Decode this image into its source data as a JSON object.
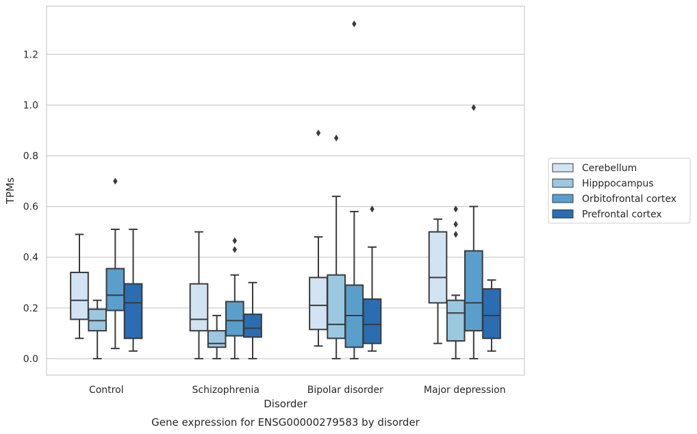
{
  "chart_data": {
    "type": "box",
    "title": "Gene expression for ENSG00000279583 by disorder",
    "xlabel": "Disorder",
    "ylabel": "TPMs",
    "ylim": [
      -0.065,
      1.39
    ],
    "yticks": [
      "0.0",
      "0.2",
      "0.4",
      "0.6",
      "0.8",
      "1.0",
      "1.2"
    ],
    "grid": true,
    "legend_position": "right",
    "categories": [
      "Control",
      "Schizophrenia",
      "Bipolar disorder",
      "Major depression"
    ],
    "series": [
      {
        "name": "Cerebellum",
        "color": "#d2e3f3",
        "boxes": [
          {
            "min": 0.08,
            "q1": 0.155,
            "median": 0.23,
            "q3": 0.34,
            "max": 0.49,
            "outliers": []
          },
          {
            "min": 0.0,
            "q1": 0.11,
            "median": 0.155,
            "q3": 0.295,
            "max": 0.5,
            "outliers": []
          },
          {
            "min": 0.05,
            "q1": 0.115,
            "median": 0.21,
            "q3": 0.32,
            "max": 0.48,
            "outliers": [
              0.89
            ]
          },
          {
            "min": 0.06,
            "q1": 0.22,
            "median": 0.32,
            "q3": 0.5,
            "max": 0.55,
            "outliers": []
          }
        ]
      },
      {
        "name": "Hipppocampus",
        "color": "#9ac8e0",
        "boxes": [
          {
            "min": 0.0,
            "q1": 0.11,
            "median": 0.15,
            "q3": 0.195,
            "max": 0.23,
            "outliers": []
          },
          {
            "min": 0.0,
            "q1": 0.045,
            "median": 0.06,
            "q3": 0.11,
            "max": 0.17,
            "outliers": []
          },
          {
            "min": 0.0,
            "q1": 0.08,
            "median": 0.135,
            "q3": 0.33,
            "max": 0.64,
            "outliers": [
              0.87
            ]
          },
          {
            "min": 0.0,
            "q1": 0.07,
            "median": 0.18,
            "q3": 0.23,
            "max": 0.25,
            "outliers": [
              0.49,
              0.53,
              0.59
            ]
          }
        ]
      },
      {
        "name": "Orbitofrontal cortex",
        "color": "#5a9ecc",
        "boxes": [
          {
            "min": 0.04,
            "q1": 0.19,
            "median": 0.25,
            "q3": 0.355,
            "max": 0.51,
            "outliers": [
              0.7
            ]
          },
          {
            "min": 0.0,
            "q1": 0.09,
            "median": 0.15,
            "q3": 0.225,
            "max": 0.33,
            "outliers": [
              0.43,
              0.465
            ]
          },
          {
            "min": 0.0,
            "q1": 0.045,
            "median": 0.17,
            "q3": 0.29,
            "max": 0.58,
            "outliers": [
              1.32
            ]
          },
          {
            "min": 0.0,
            "q1": 0.11,
            "median": 0.22,
            "q3": 0.425,
            "max": 0.6,
            "outliers": [
              0.99
            ]
          }
        ]
      },
      {
        "name": "Prefrontal cortex",
        "color": "#2a6db3",
        "boxes": [
          {
            "min": 0.03,
            "q1": 0.08,
            "median": 0.22,
            "q3": 0.295,
            "max": 0.51,
            "outliers": []
          },
          {
            "min": 0.0,
            "q1": 0.085,
            "median": 0.12,
            "q3": 0.175,
            "max": 0.3,
            "outliers": []
          },
          {
            "min": 0.03,
            "q1": 0.06,
            "median": 0.135,
            "q3": 0.235,
            "max": 0.44,
            "outliers": [
              0.59
            ]
          },
          {
            "min": 0.03,
            "q1": 0.08,
            "median": 0.17,
            "q3": 0.275,
            "max": 0.31,
            "outliers": []
          }
        ]
      }
    ]
  }
}
